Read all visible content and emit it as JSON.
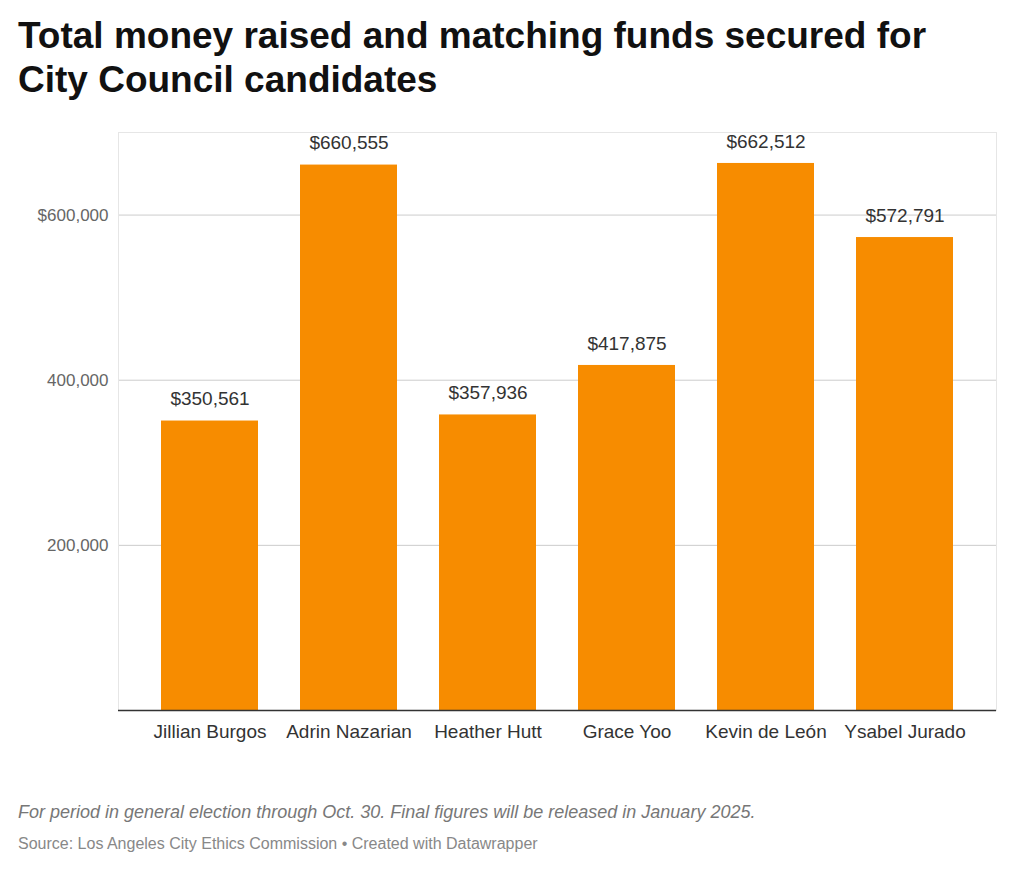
{
  "chart_data": {
    "type": "bar",
    "title": "Total money raised and matching funds secured for City Council candidates",
    "caption": "For period in general election through Oct. 30. Final figures will be released in January 2025.",
    "source": "Source: Los Angeles City Ethics Commission • Created with Datawrapper",
    "categories": [
      "Jillian Burgos",
      "Adrin Nazarian",
      "Heather Hutt",
      "Grace Yoo",
      "Kevin de León",
      "Ysabel Jurado"
    ],
    "values": [
      350561,
      660555,
      357936,
      417875,
      662512,
      572791
    ],
    "value_labels": [
      "$350,561",
      "$660,555",
      "$357,936",
      "$417,875",
      "$662,512",
      "$572,791"
    ],
    "data_labels": true,
    "color": "#f78c00",
    "ylim": [
      0,
      700000
    ],
    "yticks": [
      {
        "value": 200000,
        "label": "200,000"
      },
      {
        "value": 400000,
        "label": "400,000"
      },
      {
        "value": 600000,
        "label": "$600,000"
      }
    ],
    "grid": true
  }
}
